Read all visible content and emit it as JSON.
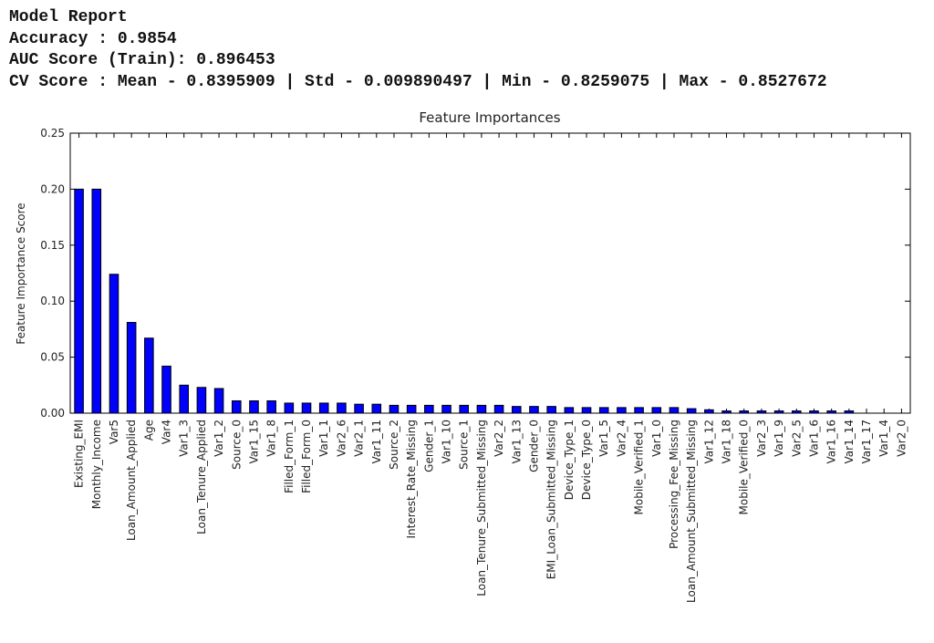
{
  "report": {
    "lines": [
      "Model Report",
      "Accuracy : 0.9854",
      "AUC Score (Train): 0.896453",
      "CV Score : Mean - 0.8395909 | Std - 0.009890497 | Min - 0.8259075 | Max - 0.8527672"
    ]
  },
  "chart_data": {
    "type": "bar",
    "title": "Feature Importances",
    "y_label": "Feature Importance Score",
    "categories": [
      "Existing_EMI",
      "Monthly_Income",
      "Var5",
      "Loan_Amount_Applied",
      "Age",
      "Var4",
      "Var1_3",
      "Loan_Tenure_Applied",
      "Var1_2",
      "Source_0",
      "Var1_15",
      "Var1_8",
      "Filled_Form_1",
      "Filled_Form_0",
      "Var1_1",
      "Var2_6",
      "Var2_1",
      "Var1_11",
      "Source_2",
      "Interest_Rate_Missing",
      "Gender_1",
      "Var1_10",
      "Source_1",
      "Loan_Tenure_Submitted_Missing",
      "Var2_2",
      "Var1_13",
      "Gender_0",
      "EMI_Loan_Submitted_Missing",
      "Device_Type_1",
      "Device_Type_0",
      "Var1_5",
      "Var2_4",
      "Mobile_Verified_1",
      "Var1_0",
      "Processing_Fee_Missing",
      "Loan_Amount_Submitted_Missing",
      "Var1_12",
      "Var1_18",
      "Mobile_Verified_0",
      "Var2_3",
      "Var1_9",
      "Var2_5",
      "Var1_6",
      "Var1_16",
      "Var1_14",
      "Var1_17",
      "Var1_4",
      "Var2_0"
    ],
    "values": [
      0.2,
      0.2,
      0.124,
      0.081,
      0.067,
      0.042,
      0.025,
      0.023,
      0.022,
      0.011,
      0.011,
      0.011,
      0.009,
      0.009,
      0.009,
      0.009,
      0.008,
      0.008,
      0.007,
      0.007,
      0.007,
      0.007,
      0.007,
      0.007,
      0.007,
      0.006,
      0.006,
      0.006,
      0.005,
      0.005,
      0.005,
      0.005,
      0.005,
      0.005,
      0.005,
      0.004,
      0.003,
      0.002,
      0.002,
      0.002,
      0.002,
      0.002,
      0.002,
      0.002,
      0.002,
      0,
      0,
      0
    ],
    "color": "#0000ff",
    "ylim": [
      0,
      0.25
    ],
    "yticks": [
      {
        "value": 0,
        "label": "0.00"
      },
      {
        "value": 0.05,
        "label": "0.05"
      },
      {
        "value": 0.1,
        "label": "0.10"
      },
      {
        "value": 0.15,
        "label": "0.15"
      },
      {
        "value": 0.2,
        "label": "0.20"
      },
      {
        "value": 0.25,
        "label": "0.25"
      }
    ],
    "grid": false
  }
}
